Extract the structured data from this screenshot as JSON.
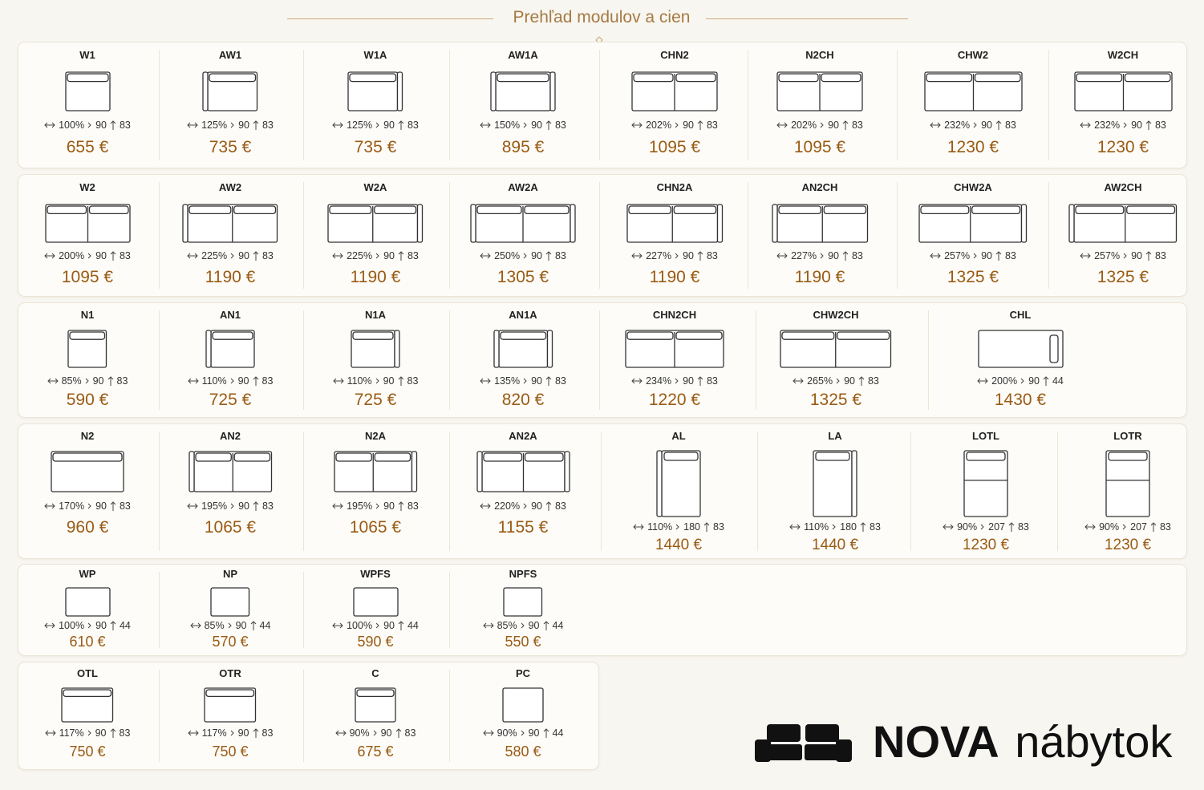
{
  "title": "Prehľad modulov a cien",
  "rows": [
    [
      {
        "code": "W1",
        "width": "100%",
        "depth": "90",
        "height": "83",
        "price": "655 €"
      },
      {
        "code": "AW1",
        "width": "125%",
        "depth": "90",
        "height": "83",
        "price": "735 €"
      },
      {
        "code": "W1A",
        "width": "125%",
        "depth": "90",
        "height": "83",
        "price": "735 €"
      },
      {
        "code": "AW1A",
        "width": "150%",
        "depth": "90",
        "height": "83",
        "price": "895 €"
      },
      {
        "code": "CHN2",
        "width": "202%",
        "depth": "90",
        "height": "83",
        "price": "1095 €"
      },
      {
        "code": "N2CH",
        "width": "202%",
        "depth": "90",
        "height": "83",
        "price": "1095 €"
      },
      {
        "code": "CHW2",
        "width": "232%",
        "depth": "90",
        "height": "83",
        "price": "1230 €"
      },
      {
        "code": "W2CH",
        "width": "232%",
        "depth": "90",
        "height": "83",
        "price": "1230 €"
      }
    ],
    [
      {
        "code": "W2",
        "width": "200%",
        "depth": "90",
        "height": "83",
        "price": "1095 €"
      },
      {
        "code": "AW2",
        "width": "225%",
        "depth": "90",
        "height": "83",
        "price": "1190 €"
      },
      {
        "code": "W2A",
        "width": "225%",
        "depth": "90",
        "height": "83",
        "price": "1190 €"
      },
      {
        "code": "AW2A",
        "width": "250%",
        "depth": "90",
        "height": "83",
        "price": "1305 €"
      },
      {
        "code": "CHN2A",
        "width": "227%",
        "depth": "90",
        "height": "83",
        "price": "1190 €"
      },
      {
        "code": "AN2CH",
        "width": "227%",
        "depth": "90",
        "height": "83",
        "price": "1190 €"
      },
      {
        "code": "CHW2A",
        "width": "257%",
        "depth": "90",
        "height": "83",
        "price": "1325 €"
      },
      {
        "code": "AW2CH",
        "width": "257%",
        "depth": "90",
        "height": "83",
        "price": "1325 €"
      }
    ],
    [
      {
        "code": "N1",
        "width": "85%",
        "depth": "90",
        "height": "83",
        "price": "590 €"
      },
      {
        "code": "AN1",
        "width": "110%",
        "depth": "90",
        "height": "83",
        "price": "725 €"
      },
      {
        "code": "N1A",
        "width": "110%",
        "depth": "90",
        "height": "83",
        "price": "725 €"
      },
      {
        "code": "AN1A",
        "width": "135%",
        "depth": "90",
        "height": "83",
        "price": "820 €"
      },
      {
        "code": "CHN2CH",
        "width": "234%",
        "depth": "90",
        "height": "83",
        "price": "1220 €"
      },
      {
        "code": "CHW2CH",
        "width": "265%",
        "depth": "90",
        "height": "83",
        "price": "1325 €"
      },
      {
        "code": "CHL",
        "width": "200%",
        "depth": "90",
        "height": "44",
        "price": "1430 €"
      }
    ],
    [
      {
        "code": "N2",
        "width": "170%",
        "depth": "90",
        "height": "83",
        "price": "960 €"
      },
      {
        "code": "AN2",
        "width": "195%",
        "depth": "90",
        "height": "83",
        "price": "1065 €"
      },
      {
        "code": "N2A",
        "width": "195%",
        "depth": "90",
        "height": "83",
        "price": "1065 €"
      },
      {
        "code": "AN2A",
        "width": "220%",
        "depth": "90",
        "height": "83",
        "price": "1155 €"
      },
      {
        "code": "AL",
        "width": "110%",
        "depth": "180",
        "height": "83",
        "price": "1440 €"
      },
      {
        "code": "LA",
        "width": "110%",
        "depth": "180",
        "height": "83",
        "price": "1440 €"
      },
      {
        "code": "LOTL",
        "width": "90%",
        "depth": "207",
        "height": "83",
        "price": "1230 €"
      },
      {
        "code": "LOTR",
        "width": "90%",
        "depth": "207",
        "height": "83",
        "price": "1230 €"
      }
    ],
    [
      {
        "code": "WP",
        "width": "100%",
        "depth": "90",
        "height": "44",
        "price": "610 €"
      },
      {
        "code": "NP",
        "width": "85%",
        "depth": "90",
        "height": "44",
        "price": "570 €"
      },
      {
        "code": "WPFS",
        "width": "100%",
        "depth": "90",
        "height": "44",
        "price": "590 €"
      },
      {
        "code": "NPFS",
        "width": "85%",
        "depth": "90",
        "height": "44",
        "price": "550 €"
      }
    ],
    [
      {
        "code": "OTL",
        "width": "117%",
        "depth": "90",
        "height": "83",
        "price": "750 €"
      },
      {
        "code": "OTR",
        "width": "117%",
        "depth": "90",
        "height": "83",
        "price": "750 €"
      },
      {
        "code": "C",
        "width": "90%",
        "depth": "90",
        "height": "83",
        "price": "675 €"
      },
      {
        "code": "PC",
        "width": "90%",
        "depth": "90",
        "height": "44",
        "price": "580 €"
      }
    ]
  ],
  "brand": {
    "name": "NOVA",
    "suffix": "nábytok"
  }
}
